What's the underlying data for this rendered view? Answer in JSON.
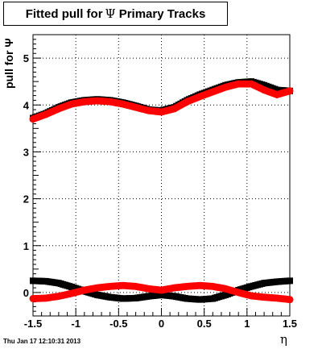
{
  "title": {
    "prefix": "Fitted pull for",
    "symbol": "Ψ",
    "suffix": "Primary Tracks"
  },
  "timestamp": "Thu Jan 17 12:10:31 2013",
  "chart_data": {
    "type": "scatter",
    "title": "Fitted pull for Ψ  Primary Tracks",
    "xlabel": "η",
    "ylabel": "pull for Ψ",
    "xlim": [
      -1.5,
      1.5
    ],
    "ylim": [
      -0.5,
      5.5
    ],
    "xticks": [
      "-1.5",
      "-1",
      "-0.5",
      "0",
      "0.5",
      "1",
      "1.5"
    ],
    "yticks": [
      "0",
      "1",
      "2",
      "3",
      "4",
      "5"
    ],
    "grid": true,
    "colors": {
      "black": "#000000",
      "red": "#ff0000"
    },
    "series": [
      {
        "color": "black",
        "x": [
          -1.5,
          -1.35,
          -1.2,
          -1.05,
          -0.9,
          -0.75,
          -0.6,
          -0.45,
          -0.3,
          -0.15,
          0.0,
          0.15,
          0.3,
          0.45,
          0.6,
          0.75,
          0.9,
          1.05,
          1.2,
          1.35,
          1.5
        ],
        "y": [
          3.72,
          3.82,
          3.95,
          4.05,
          4.1,
          4.12,
          4.1,
          4.05,
          3.98,
          3.9,
          3.88,
          3.95,
          4.1,
          4.22,
          4.32,
          4.42,
          4.48,
          4.5,
          4.42,
          4.32,
          4.3
        ]
      },
      {
        "color": "red",
        "x": [
          -1.5,
          -1.35,
          -1.2,
          -1.05,
          -0.9,
          -0.75,
          -0.6,
          -0.45,
          -0.3,
          -0.15,
          0.0,
          0.15,
          0.3,
          0.45,
          0.6,
          0.75,
          0.9,
          1.05,
          1.2,
          1.35,
          1.5
        ],
        "y": [
          3.7,
          3.8,
          3.92,
          4.02,
          4.07,
          4.09,
          4.07,
          4.02,
          3.95,
          3.88,
          3.85,
          3.92,
          4.07,
          4.18,
          4.28,
          4.38,
          4.45,
          4.45,
          4.32,
          4.22,
          4.3
        ]
      },
      {
        "color": "black",
        "x": [
          -1.5,
          -1.35,
          -1.2,
          -1.05,
          -0.9,
          -0.75,
          -0.6,
          -0.45,
          -0.3,
          -0.15,
          0.0,
          0.15,
          0.3,
          0.45,
          0.6,
          0.75,
          0.9,
          1.05,
          1.2,
          1.35,
          1.5
        ],
        "y": [
          0.25,
          0.24,
          0.2,
          0.12,
          0.03,
          -0.05,
          -0.1,
          -0.13,
          -0.12,
          -0.08,
          -0.05,
          -0.08,
          -0.13,
          -0.15,
          -0.13,
          -0.05,
          0.05,
          0.13,
          0.2,
          0.23,
          0.25
        ]
      },
      {
        "color": "red",
        "x": [
          -1.5,
          -1.35,
          -1.2,
          -1.05,
          -0.9,
          -0.75,
          -0.6,
          -0.45,
          -0.3,
          -0.15,
          0.0,
          0.15,
          0.3,
          0.45,
          0.6,
          0.75,
          0.9,
          1.05,
          1.2,
          1.35,
          1.5
        ],
        "y": [
          -0.13,
          -0.12,
          -0.08,
          -0.02,
          0.05,
          0.1,
          0.13,
          0.15,
          0.13,
          0.08,
          0.05,
          0.1,
          0.13,
          0.15,
          0.13,
          0.08,
          0.0,
          -0.07,
          -0.1,
          -0.12,
          -0.15
        ]
      }
    ]
  }
}
